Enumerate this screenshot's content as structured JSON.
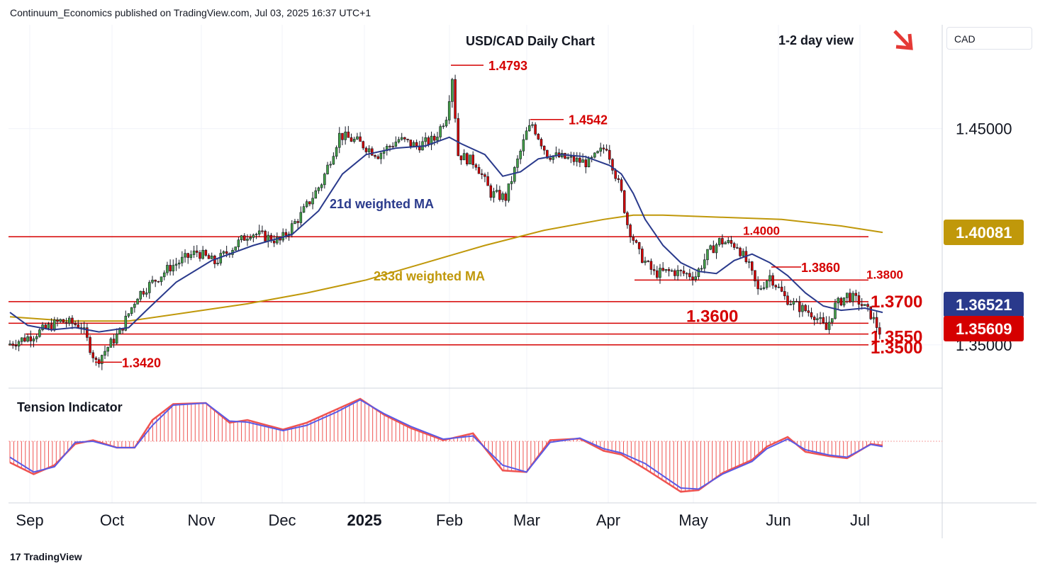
{
  "header": {
    "attribution": "Continuum_Economics published on TradingView.com, Jul 03, 2025 16:37 UTC+1"
  },
  "footer": {
    "logo_text": "TradingView"
  },
  "currency": "CAD",
  "colors": {
    "up": "#43a047",
    "down": "#d50000",
    "wma21": "#2a3a8c",
    "wma233": "#c0980a",
    "level": "#d50000",
    "tension_red": "#ef5350",
    "tension_blue": "#5a5ae6"
  },
  "chart_data": {
    "type": "candlestick",
    "title": "USD/CAD Daily Chart",
    "view_label": "1-2 day view",
    "view_arrow": "down-right",
    "y_range": [
      1.33,
      1.498
    ],
    "y_ticks": [
      {
        "value": 1.45,
        "label": "1.45000"
      },
      {
        "value": 1.35,
        "label": "1.35000"
      }
    ],
    "x_ticks": [
      {
        "label": "Sep",
        "bold": false
      },
      {
        "label": "Oct",
        "bold": false
      },
      {
        "label": "Nov",
        "bold": false
      },
      {
        "label": "Dec",
        "bold": false
      },
      {
        "label": "2025",
        "bold": true
      },
      {
        "label": "Feb",
        "bold": false
      },
      {
        "label": "Mar",
        "bold": false
      },
      {
        "label": "Apr",
        "bold": false
      },
      {
        "label": "May",
        "bold": false
      },
      {
        "label": "Jun",
        "bold": false
      },
      {
        "label": "Jul",
        "bold": false
      }
    ],
    "price_badges": [
      {
        "value": 1.4008,
        "label": "1.40081",
        "bg": "#c0980a",
        "fg": "#ffffff"
      },
      {
        "value": 1.3652,
        "label": "1.36521",
        "bg": "#2a3a8c",
        "fg": "#ffffff"
      },
      {
        "value": 1.3561,
        "label": "1.35609",
        "bg": "#d50000",
        "fg": "#ffffff"
      }
    ],
    "levels": [
      {
        "value": 1.4,
        "label": "1.4000"
      },
      {
        "value": 1.38,
        "label": "1.3800"
      },
      {
        "value": 1.37,
        "label": "1.3700"
      },
      {
        "value": 1.36,
        "label": "1.3600"
      },
      {
        "value": 1.355,
        "label": "1.3550"
      },
      {
        "value": 1.35,
        "label": "1.3500"
      }
    ],
    "annotations": [
      {
        "label": "1.4793",
        "value": 1.4793
      },
      {
        "label": "1.4542",
        "value": 1.4542
      },
      {
        "label": "1.3860",
        "value": 1.386
      },
      {
        "label": "1.3420",
        "value": 1.342
      }
    ],
    "series_labels": [
      {
        "label": "21d weighted MA"
      },
      {
        "label": "233d weighted MA"
      }
    ],
    "close_path": [
      [
        0,
        1.35
      ],
      [
        8,
        1.354
      ],
      [
        18,
        1.361
      ],
      [
        25,
        1.359
      ],
      [
        30,
        1.342
      ],
      [
        38,
        1.356
      ],
      [
        44,
        1.373
      ],
      [
        55,
        1.386
      ],
      [
        64,
        1.393
      ],
      [
        70,
        1.388
      ],
      [
        82,
        1.402
      ],
      [
        92,
        1.398
      ],
      [
        99,
        1.41
      ],
      [
        106,
        1.425
      ],
      [
        112,
        1.447
      ],
      [
        118,
        1.444
      ],
      [
        125,
        1.438
      ],
      [
        132,
        1.445
      ],
      [
        138,
        1.442
      ],
      [
        144,
        1.445
      ],
      [
        148,
        1.456
      ],
      [
        150,
        1.474
      ],
      [
        152,
        1.438
      ],
      [
        158,
        1.434
      ],
      [
        163,
        1.42
      ],
      [
        168,
        1.418
      ],
      [
        172,
        1.435
      ],
      [
        175,
        1.448
      ],
      [
        177,
        1.452
      ],
      [
        182,
        1.438
      ],
      [
        189,
        1.436
      ],
      [
        196,
        1.434
      ],
      [
        202,
        1.442
      ],
      [
        207,
        1.42
      ],
      [
        209,
        1.406
      ],
      [
        213,
        1.392
      ],
      [
        218,
        1.383
      ],
      [
        224,
        1.384
      ],
      [
        232,
        1.382
      ],
      [
        236,
        1.392
      ],
      [
        240,
        1.398
      ],
      [
        246,
        1.396
      ],
      [
        250,
        1.386
      ],
      [
        253,
        1.375
      ],
      [
        257,
        1.382
      ],
      [
        262,
        1.372
      ],
      [
        266,
        1.368
      ],
      [
        272,
        1.364
      ],
      [
        276,
        1.357
      ],
      [
        279,
        1.368
      ],
      [
        283,
        1.373
      ],
      [
        287,
        1.37
      ],
      [
        291,
        1.364
      ],
      [
        294,
        1.3561
      ]
    ],
    "wma21_path": [
      [
        0,
        1.365
      ],
      [
        6,
        1.359
      ],
      [
        14,
        1.357
      ],
      [
        22,
        1.358
      ],
      [
        30,
        1.356
      ],
      [
        40,
        1.358
      ],
      [
        46,
        1.366
      ],
      [
        56,
        1.379
      ],
      [
        68,
        1.389
      ],
      [
        82,
        1.396
      ],
      [
        95,
        1.401
      ],
      [
        104,
        1.412
      ],
      [
        112,
        1.429
      ],
      [
        120,
        1.438
      ],
      [
        130,
        1.441
      ],
      [
        140,
        1.442
      ],
      [
        148,
        1.446
      ],
      [
        152,
        1.443
      ],
      [
        160,
        1.438
      ],
      [
        166,
        1.428
      ],
      [
        172,
        1.43
      ],
      [
        178,
        1.436
      ],
      [
        186,
        1.438
      ],
      [
        194,
        1.437
      ],
      [
        202,
        1.433
      ],
      [
        206,
        1.429
      ],
      [
        210,
        1.42
      ],
      [
        214,
        1.408
      ],
      [
        220,
        1.396
      ],
      [
        226,
        1.388
      ],
      [
        232,
        1.384
      ],
      [
        238,
        1.383
      ],
      [
        244,
        1.389
      ],
      [
        250,
        1.392
      ],
      [
        256,
        1.388
      ],
      [
        262,
        1.382
      ],
      [
        268,
        1.374
      ],
      [
        274,
        1.368
      ],
      [
        280,
        1.366
      ],
      [
        288,
        1.367
      ],
      [
        294,
        1.365
      ]
    ],
    "wma233_path": [
      [
        0,
        1.363
      ],
      [
        20,
        1.361
      ],
      [
        40,
        1.361
      ],
      [
        60,
        1.365
      ],
      [
        80,
        1.369
      ],
      [
        100,
        1.374
      ],
      [
        120,
        1.38
      ],
      [
        140,
        1.388
      ],
      [
        160,
        1.396
      ],
      [
        180,
        1.403
      ],
      [
        200,
        1.408
      ],
      [
        210,
        1.41
      ],
      [
        220,
        1.41
      ],
      [
        240,
        1.409
      ],
      [
        260,
        1.408
      ],
      [
        280,
        1.405
      ],
      [
        294,
        1.402
      ]
    ],
    "tension": {
      "label": "Tension Indicator",
      "y_range": [
        -1,
        1
      ],
      "red_path": [
        [
          0,
          -0.4
        ],
        [
          8,
          -0.62
        ],
        [
          15,
          -0.45
        ],
        [
          22,
          -0.05
        ],
        [
          28,
          0.02
        ],
        [
          36,
          -0.12
        ],
        [
          42,
          -0.12
        ],
        [
          48,
          0.4
        ],
        [
          55,
          0.7
        ],
        [
          66,
          0.72
        ],
        [
          74,
          0.35
        ],
        [
          80,
          0.4
        ],
        [
          92,
          0.22
        ],
        [
          100,
          0.35
        ],
        [
          110,
          0.6
        ],
        [
          118,
          0.8
        ],
        [
          126,
          0.5
        ],
        [
          135,
          0.25
        ],
        [
          146,
          0.02
        ],
        [
          156,
          0.15
        ],
        [
          166,
          -0.55
        ],
        [
          174,
          -0.58
        ],
        [
          182,
          0.02
        ],
        [
          192,
          0.05
        ],
        [
          200,
          -0.18
        ],
        [
          206,
          -0.25
        ],
        [
          214,
          -0.52
        ],
        [
          226,
          -0.95
        ],
        [
          232,
          -0.92
        ],
        [
          240,
          -0.6
        ],
        [
          250,
          -0.35
        ],
        [
          255,
          -0.1
        ],
        [
          262,
          0.08
        ],
        [
          268,
          -0.2
        ],
        [
          276,
          -0.28
        ],
        [
          282,
          -0.32
        ],
        [
          290,
          -0.05
        ],
        [
          294,
          -0.08
        ]
      ],
      "blue_path": [
        [
          0,
          -0.3
        ],
        [
          8,
          -0.58
        ],
        [
          15,
          -0.48
        ],
        [
          22,
          -0.02
        ],
        [
          28,
          0.0
        ],
        [
          36,
          -0.12
        ],
        [
          42,
          -0.12
        ],
        [
          48,
          0.3
        ],
        [
          55,
          0.68
        ],
        [
          66,
          0.72
        ],
        [
          74,
          0.38
        ],
        [
          80,
          0.36
        ],
        [
          92,
          0.2
        ],
        [
          100,
          0.3
        ],
        [
          110,
          0.55
        ],
        [
          118,
          0.78
        ],
        [
          126,
          0.52
        ],
        [
          135,
          0.28
        ],
        [
          146,
          0.04
        ],
        [
          156,
          0.1
        ],
        [
          166,
          -0.45
        ],
        [
          174,
          -0.58
        ],
        [
          182,
          -0.02
        ],
        [
          192,
          0.06
        ],
        [
          200,
          -0.14
        ],
        [
          206,
          -0.22
        ],
        [
          214,
          -0.42
        ],
        [
          226,
          -0.88
        ],
        [
          232,
          -0.9
        ],
        [
          240,
          -0.62
        ],
        [
          250,
          -0.38
        ],
        [
          255,
          -0.14
        ],
        [
          262,
          0.04
        ],
        [
          268,
          -0.16
        ],
        [
          276,
          -0.26
        ],
        [
          282,
          -0.3
        ],
        [
          290,
          -0.06
        ],
        [
          294,
          -0.1
        ]
      ]
    }
  }
}
